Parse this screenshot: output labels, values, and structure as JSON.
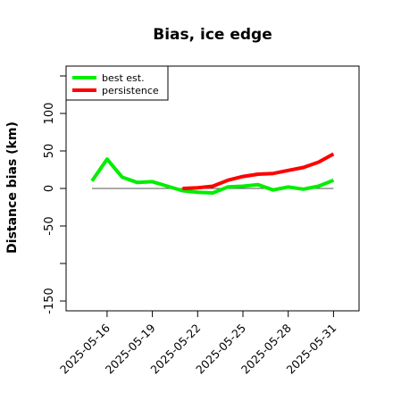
{
  "chart_data": {
    "type": "line",
    "title": "Bias, ice edge",
    "xlabel": "",
    "ylabel": "Distance bias (km)",
    "x": [
      "2025-05-15",
      "2025-05-16",
      "2025-05-17",
      "2025-05-18",
      "2025-05-19",
      "2025-05-20",
      "2025-05-21",
      "2025-05-22",
      "2025-05-23",
      "2025-05-24",
      "2025-05-25",
      "2025-05-26",
      "2025-05-27",
      "2025-05-28",
      "2025-05-29",
      "2025-05-30",
      "2025-05-31"
    ],
    "x_ticks": [
      "2025-05-16",
      "2025-05-19",
      "2025-05-22",
      "2025-05-25",
      "2025-05-28",
      "2025-05-31"
    ],
    "y_ticks": [
      -150,
      -50,
      0,
      50,
      100
    ],
    "y_extra_ticks": [
      -100,
      150
    ],
    "ylim": [
      -160,
      160
    ],
    "reference_line": 0,
    "grid": false,
    "legend_position": "top-left",
    "series": [
      {
        "name": "best est.",
        "color": "#00ee00",
        "values": [
          10,
          39,
          15,
          8,
          9,
          3,
          -3,
          -5,
          -6,
          2,
          3,
          5,
          -2,
          2,
          -1,
          3,
          11
        ]
      },
      {
        "name": "persistence",
        "color": "#ff0000",
        "values": [
          null,
          null,
          null,
          null,
          null,
          null,
          0,
          1,
          3,
          11,
          16,
          19,
          20,
          24,
          28,
          35,
          46
        ]
      }
    ]
  }
}
